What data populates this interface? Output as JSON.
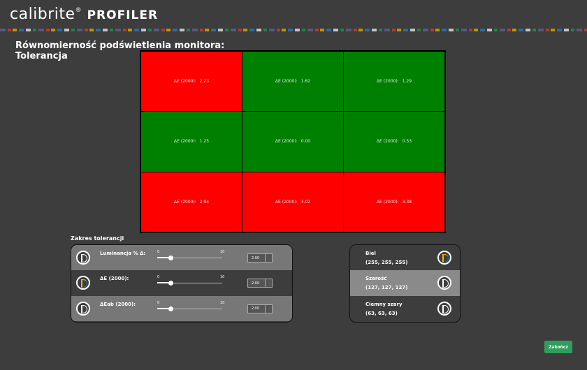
{
  "header": {
    "brand": "calibrite",
    "brand_mark": "®",
    "product": "PROFILER"
  },
  "title": {
    "line1": "Równomierność podświetlenia monitora:",
    "line2": "Tolerancja"
  },
  "uniformity": {
    "cells": [
      {
        "label": "ΔE (2000):",
        "value": "2.23",
        "color": "#ff0000"
      },
      {
        "label": "ΔE (2000):",
        "value": "1.62",
        "color": "#008000"
      },
      {
        "label": "ΔE (2000):",
        "value": "1.29",
        "color": "#008000"
      },
      {
        "label": "ΔE (2000):",
        "value": "1.25",
        "color": "#008000"
      },
      {
        "label": "ΔE (2000):",
        "value": "0.00",
        "color": "#008000"
      },
      {
        "label": "ΔE (2000):",
        "value": "0.53",
        "color": "#008000"
      },
      {
        "label": "ΔE (2000):",
        "value": "2.94",
        "color": "#ff0000"
      },
      {
        "label": "ΔE (2000):",
        "value": "3.02",
        "color": "#ff0000"
      },
      {
        "label": "ΔE (2000):",
        "value": "3.38",
        "color": "#ff0000"
      }
    ]
  },
  "tolerance": {
    "title": "Zakres tolerancji",
    "rows": [
      {
        "label": "Luminancja % Δ:",
        "min": 0,
        "max": 10,
        "value": "2.00"
      },
      {
        "label": "ΔE (2000):",
        "min": 0,
        "max": 10,
        "value": "2.00"
      },
      {
        "label": "ΔEab (2000):",
        "min": 0,
        "max": 10,
        "value": "2.00"
      }
    ]
  },
  "patches": [
    {
      "name": "Biel",
      "rgb": "(255, 255, 255)"
    },
    {
      "name": "Szarość",
      "rgb": "(127, 127, 127)"
    },
    {
      "name": "Ciemny szary",
      "rgb": "(63, 63, 63)"
    }
  ],
  "button": "Zakończ"
}
